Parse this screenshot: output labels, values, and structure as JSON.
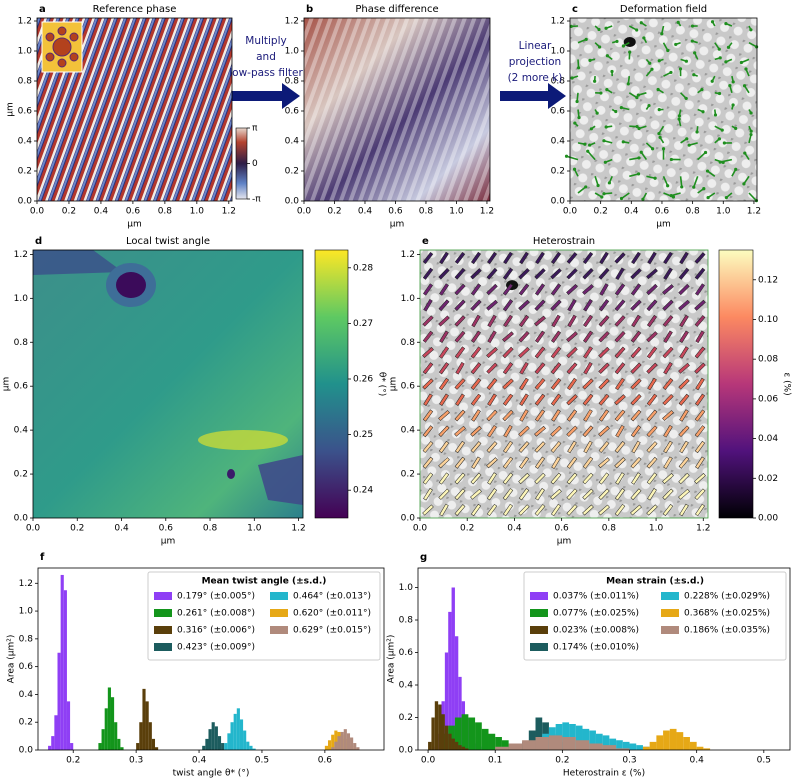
{
  "chart_data": [
    {
      "type": "image",
      "panel": "a",
      "title": "Reference phase",
      "xlabel": "µm",
      "ylabel": "µm",
      "xlim": [
        0,
        1.22
      ],
      "ylim": [
        0,
        1.22
      ],
      "xticks": [
        {
          "value": 0,
          "label": "0.0"
        },
        0.2,
        0.4,
        0.6,
        0.8,
        {
          "value": 1,
          "label": "1.0"
        },
        1.2
      ],
      "yticks": [
        {
          "value": 0,
          "label": "0.0"
        },
        0.2,
        0.4,
        0.6,
        0.8,
        {
          "value": 1,
          "label": "1.0"
        },
        1.2
      ],
      "colorbar": {
        "clim": [
          -3.1416,
          3.1416
        ],
        "ticks": [
          {
            "value": 3.1416,
            "label": "π"
          },
          0,
          {
            "value": -3.1416,
            "label": "-π"
          }
        ]
      }
    },
    {
      "type": "image",
      "panel": "b",
      "title": "Phase difference",
      "xlabel": "µm",
      "xlim": [
        0,
        1.22
      ],
      "ylim": [
        0,
        1.22
      ],
      "xticks": [
        {
          "value": 0,
          "label": "0.0"
        },
        0.2,
        0.4,
        0.6,
        0.8,
        {
          "value": 1,
          "label": "1.0"
        },
        1.2
      ],
      "yticks": [
        {
          "value": 0,
          "label": "0.0"
        },
        0.2,
        0.4,
        0.6,
        0.8,
        {
          "value": 1,
          "label": "1.0"
        },
        1.2
      ]
    },
    {
      "type": "image",
      "panel": "c",
      "title": "Deformation field",
      "xlabel": "µm",
      "xlim": [
        0,
        1.22
      ],
      "ylim": [
        0,
        1.22
      ],
      "xticks": [
        {
          "value": 0,
          "label": "0.0"
        },
        0.2,
        0.4,
        0.6,
        0.8,
        {
          "value": 1,
          "label": "1.0"
        },
        1.2
      ],
      "yticks": [
        {
          "value": 0,
          "label": "0.0"
        },
        0.2,
        0.4,
        0.6,
        0.8,
        {
          "value": 1,
          "label": "1.0"
        },
        1.2
      ]
    },
    {
      "type": "image",
      "panel": "d",
      "title": "Local twist angle",
      "xlabel": "µm",
      "ylabel": "µm",
      "xlim": [
        0,
        1.22
      ],
      "ylim": [
        0,
        1.22
      ],
      "xticks": [
        {
          "value": 0,
          "label": "0.0"
        },
        0.2,
        0.4,
        0.6,
        0.8,
        {
          "value": 1,
          "label": "1.0"
        },
        1.2
      ],
      "yticks": [
        {
          "value": 0,
          "label": "0.0"
        },
        0.2,
        0.4,
        0.6,
        0.8,
        {
          "value": 1,
          "label": "1.0"
        },
        1.2
      ],
      "colorbar": {
        "label": "θ* (°)",
        "clim": [
          0.235,
          0.2832
        ],
        "ticks": [
          0.24,
          0.25,
          0.26,
          0.27,
          0.28
        ]
      }
    },
    {
      "type": "image",
      "panel": "e",
      "title": "Heterostrain",
      "xlabel": "µm",
      "ylabel": "µm",
      "xlim": [
        0,
        1.22
      ],
      "ylim": [
        0,
        1.22
      ],
      "xticks": [
        {
          "value": 0,
          "label": "0.0"
        },
        0.2,
        0.4,
        0.6,
        0.8,
        {
          "value": 1,
          "label": "1.0"
        },
        1.2
      ],
      "yticks": [
        {
          "value": 0,
          "label": "0.0"
        },
        0.2,
        0.4,
        0.6,
        0.8,
        {
          "value": 1,
          "label": "1.0"
        },
        1.2
      ],
      "colorbar": {
        "label": "ε (%)",
        "clim": [
          0,
          0.135
        ],
        "ticks": [
          {
            "value": 0,
            "label": "0.00"
          },
          0.02,
          0.04,
          0.06,
          0.08,
          {
            "value": 0.1,
            "label": "0.10"
          },
          0.12
        ]
      }
    },
    {
      "type": "histogram",
      "panel": "f",
      "xlabel": "twist angle θ* (°)",
      "ylabel": "Area (µm²)",
      "xlim": [
        0.144,
        0.694
      ],
      "ylim": [
        0,
        1.31
      ],
      "xticks": [
        0.2,
        0.3,
        0.4,
        0.5,
        0.6
      ],
      "yticks": [
        {
          "value": 0,
          "label": "0.0"
        },
        0.2,
        0.4,
        0.6,
        0.8,
        {
          "value": 1,
          "label": "1.0"
        },
        1.2
      ],
      "legend": {
        "title": "Mean twist angle (±s.d.)",
        "position": "upper right",
        "ncol": 2
      },
      "series": [
        {
          "name": "0.179° (±0.005°)",
          "color": "#8f3ff5",
          "bins": [
            0.16,
            0.165,
            0.17,
            0.175,
            0.18,
            0.185,
            0.19,
            0.195,
            0.2
          ],
          "values": [
            0.03,
            0.1,
            0.25,
            0.7,
            1.26,
            1.15,
            0.35,
            0.05
          ]
        },
        {
          "name": "0.261° (±0.008°)",
          "color": "#13951b",
          "bins": [
            0.24,
            0.245,
            0.25,
            0.255,
            0.26,
            0.265,
            0.27,
            0.275,
            0.28
          ],
          "values": [
            0.05,
            0.15,
            0.3,
            0.45,
            0.38,
            0.2,
            0.08,
            0.02
          ]
        },
        {
          "name": "0.316° (±0.006°)",
          "color": "#5a3f0b",
          "bins": [
            0.3,
            0.305,
            0.31,
            0.315,
            0.32,
            0.325,
            0.33,
            0.335
          ],
          "values": [
            0.05,
            0.2,
            0.44,
            0.35,
            0.2,
            0.08,
            0.02
          ]
        },
        {
          "name": "0.423° (±0.009°)",
          "color": "#1c5c5e",
          "bins": [
            0.405,
            0.41,
            0.415,
            0.42,
            0.425,
            0.43,
            0.435,
            0.44
          ],
          "values": [
            0.03,
            0.08,
            0.15,
            0.2,
            0.17,
            0.1,
            0.05
          ]
        },
        {
          "name": "0.464° (±0.013°)",
          "color": "#23b6cc",
          "bins": [
            0.44,
            0.445,
            0.45,
            0.455,
            0.46,
            0.465,
            0.47,
            0.475,
            0.48,
            0.485,
            0.49
          ],
          "values": [
            0.05,
            0.12,
            0.2,
            0.26,
            0.3,
            0.22,
            0.14,
            0.06,
            0.03,
            0.01
          ]
        },
        {
          "name": "0.620° (±0.011°)",
          "color": "#e6a816",
          "bins": [
            0.6,
            0.605,
            0.61,
            0.615,
            0.62,
            0.625,
            0.63,
            0.635,
            0.64,
            0.645,
            0.65
          ],
          "values": [
            0.03,
            0.07,
            0.11,
            0.14,
            0.13,
            0.11,
            0.08,
            0.05,
            0.03,
            0.01
          ]
        },
        {
          "name": "0.629° (±0.015°)",
          "color": "#b08a7c",
          "bins": [
            0.61,
            0.615,
            0.62,
            0.625,
            0.63,
            0.635,
            0.64,
            0.645,
            0.65,
            0.655
          ],
          "values": [
            0.02,
            0.06,
            0.1,
            0.13,
            0.15,
            0.12,
            0.09,
            0.05,
            0.02
          ]
        }
      ]
    },
    {
      "type": "histogram",
      "panel": "g",
      "xlabel": "Heterostrain ε (%)",
      "ylabel": "Area (µm²)",
      "xlim": [
        -0.015,
        0.539
      ],
      "ylim": [
        0,
        1.12
      ],
      "xticks": [
        {
          "value": 0,
          "label": "0.0"
        },
        0.1,
        0.2,
        0.3,
        0.4,
        0.5
      ],
      "yticks": [
        {
          "value": 0,
          "label": "0.0"
        },
        0.2,
        0.4,
        0.6,
        0.8,
        {
          "value": 1,
          "label": "1.0"
        }
      ],
      "legend": {
        "title": "Mean strain (±s.d.)",
        "position": "upper right",
        "ncol": 2
      },
      "series": [
        {
          "name": "0.037%  (±0.011%)",
          "color": "#8f3ff5",
          "bins": [
            0.01,
            0.015,
            0.02,
            0.025,
            0.03,
            0.035,
            0.04,
            0.045,
            0.05,
            0.055,
            0.06,
            0.065,
            0.07,
            0.075,
            0.08
          ],
          "values": [
            0.02,
            0.1,
            0.3,
            0.6,
            0.85,
            1.0,
            0.7,
            0.45,
            0.3,
            0.2,
            0.12,
            0.08,
            0.04,
            0.02
          ]
        },
        {
          "name": "0.077%  (±0.025%)",
          "color": "#13951b",
          "bins": [
            0.02,
            0.03,
            0.04,
            0.05,
            0.06,
            0.07,
            0.08,
            0.09,
            0.1,
            0.11,
            0.12,
            0.13,
            0.14,
            0.15,
            0.16
          ],
          "values": [
            0.1,
            0.15,
            0.2,
            0.22,
            0.2,
            0.17,
            0.13,
            0.1,
            0.08,
            0.06,
            0.04,
            0.03,
            0.02,
            0.01
          ]
        },
        {
          "name": "0.023%  (±0.008%)",
          "color": "#5a3f0b",
          "bins": [
            0,
            0.005,
            0.01,
            0.015,
            0.02,
            0.025,
            0.03,
            0.035,
            0.04,
            0.045,
            0.05,
            0.055,
            0.06
          ],
          "values": [
            0.05,
            0.2,
            0.3,
            0.28,
            0.22,
            0.15,
            0.1,
            0.07,
            0.05,
            0.03,
            0.02,
            0.01
          ]
        },
        {
          "name": "0.174%  (±0.010%)",
          "color": "#1c5c5e",
          "bins": [
            0.14,
            0.15,
            0.16,
            0.17,
            0.18,
            0.19,
            0.2,
            0.21
          ],
          "values": [
            0.05,
            0.12,
            0.2,
            0.17,
            0.1,
            0.05,
            0.02
          ]
        },
        {
          "name": "0.228%  (±0.029%)",
          "color": "#23b6cc",
          "bins": [
            0.15,
            0.16,
            0.17,
            0.18,
            0.19,
            0.2,
            0.21,
            0.22,
            0.23,
            0.24,
            0.25,
            0.26,
            0.27,
            0.28,
            0.29,
            0.3,
            0.31,
            0.32,
            0.33,
            0.34
          ],
          "values": [
            0.03,
            0.06,
            0.1,
            0.14,
            0.16,
            0.17,
            0.16,
            0.15,
            0.13,
            0.12,
            0.1,
            0.09,
            0.07,
            0.06,
            0.05,
            0.04,
            0.03,
            0.02,
            0.01
          ]
        },
        {
          "name": "0.368%  (±0.025%)",
          "color": "#e6a816",
          "bins": [
            0.32,
            0.33,
            0.34,
            0.35,
            0.36,
            0.37,
            0.38,
            0.39,
            0.4,
            0.41,
            0.42
          ],
          "values": [
            0.02,
            0.05,
            0.09,
            0.12,
            0.13,
            0.11,
            0.08,
            0.05,
            0.02,
            0.01
          ]
        },
        {
          "name": "0.186%  (±0.035%)",
          "color": "#b08a7c",
          "bins": [
            0.1,
            0.12,
            0.14,
            0.16,
            0.18,
            0.2,
            0.22,
            0.24,
            0.26,
            0.28,
            0.3
          ],
          "values": [
            0.02,
            0.04,
            0.06,
            0.08,
            0.09,
            0.08,
            0.06,
            0.04,
            0.03,
            0.01
          ]
        }
      ]
    }
  ],
  "arrows": [
    {
      "lines": [
        "Multiply",
        "and",
        "low-pass filter"
      ]
    },
    {
      "lines": [
        "Linear",
        "projection",
        "(2 more k)"
      ]
    }
  ]
}
